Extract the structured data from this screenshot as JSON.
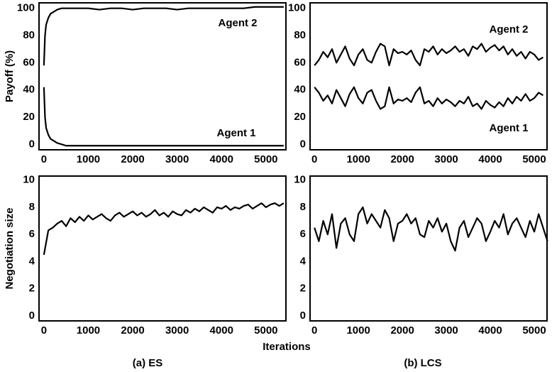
{
  "xlabel": "Iterations",
  "captions": [
    "(a) ES",
    "(b) LCS"
  ],
  "chart_data": [
    {
      "type": "line",
      "ylabel": "Payoff (%)",
      "annotations": [
        "Agent 2",
        "Agent 1"
      ],
      "xlim": [
        -110,
        5450
      ],
      "ylim": [
        -4,
        104
      ],
      "xticks": [
        0,
        1000,
        2000,
        3000,
        4000,
        5000
      ],
      "yticks": [
        0,
        20,
        40,
        60,
        80,
        100
      ],
      "x": [
        0,
        25,
        50,
        100,
        150,
        200,
        300,
        400,
        500,
        750,
        1000,
        1250,
        1500,
        1750,
        2000,
        2250,
        2500,
        2750,
        3000,
        3250,
        3500,
        3750,
        4000,
        4250,
        4500,
        4750,
        5000,
        5250,
        5400
      ],
      "series": [
        {
          "name": "Agent 2",
          "color": "#000000",
          "values": [
            58,
            80,
            88,
            93,
            96,
            97,
            99,
            100,
            100,
            100,
            100,
            99,
            100,
            100,
            99,
            100,
            100,
            100,
            99,
            100,
            100,
            100,
            100,
            100,
            100,
            101,
            101,
            101,
            101
          ]
        },
        {
          "name": "Agent 1",
          "color": "#000000",
          "values": [
            42,
            20,
            12,
            7,
            4,
            3,
            1,
            0,
            -1,
            -1,
            -1,
            -1,
            -1,
            -1,
            -1,
            -1,
            -1,
            -1,
            -1,
            -1,
            -1,
            -1,
            -1,
            -1,
            -1,
            -1,
            -1,
            -1,
            -1
          ]
        }
      ]
    },
    {
      "type": "line",
      "annotations": [
        "Agent 2",
        "Agent 1"
      ],
      "xlim": [
        -100,
        5290
      ],
      "ylim": [
        -4,
        104
      ],
      "xticks": [
        0,
        1000,
        2000,
        3000,
        4000,
        5000
      ],
      "yticks": [
        0,
        20,
        40,
        60,
        80,
        100
      ],
      "x": [
        0,
        100,
        200,
        300,
        400,
        500,
        600,
        700,
        800,
        900,
        1000,
        1100,
        1200,
        1300,
        1400,
        1500,
        1600,
        1700,
        1800,
        1900,
        2000,
        2100,
        2200,
        2300,
        2400,
        2500,
        2600,
        2700,
        2800,
        2900,
        3000,
        3100,
        3200,
        3300,
        3400,
        3500,
        3600,
        3700,
        3800,
        3900,
        4000,
        4100,
        4200,
        4300,
        4400,
        4500,
        4600,
        4700,
        4800,
        4900,
        5000,
        5100,
        5200
      ],
      "series": [
        {
          "name": "Agent 2",
          "color": "#000000",
          "values": [
            58,
            62,
            68,
            64,
            70,
            60,
            66,
            72,
            63,
            58,
            66,
            70,
            62,
            60,
            68,
            74,
            72,
            58,
            70,
            67,
            68,
            66,
            69,
            62,
            58,
            70,
            68,
            72,
            66,
            70,
            67,
            69,
            72,
            68,
            70,
            65,
            72,
            70,
            74,
            68,
            71,
            73,
            69,
            72,
            66,
            70,
            65,
            68,
            63,
            68,
            66,
            62,
            64
          ]
        },
        {
          "name": "Agent 1",
          "color": "#000000",
          "values": [
            42,
            38,
            32,
            36,
            30,
            40,
            34,
            28,
            37,
            42,
            34,
            30,
            38,
            40,
            32,
            26,
            28,
            42,
            30,
            33,
            32,
            34,
            31,
            38,
            42,
            30,
            32,
            28,
            34,
            30,
            33,
            31,
            28,
            32,
            30,
            35,
            28,
            30,
            26,
            32,
            29,
            27,
            31,
            28,
            34,
            30,
            35,
            32,
            37,
            32,
            34,
            38,
            36
          ]
        }
      ]
    },
    {
      "type": "line",
      "ylabel": "Negotiation size",
      "xlim": [
        -110,
        5450
      ],
      "ylim": [
        -0.37,
        10.3
      ],
      "xticks": [
        0,
        1000,
        2000,
        3000,
        4000,
        5000
      ],
      "yticks": [
        0,
        2,
        4,
        6,
        8,
        10
      ],
      "x": [
        0,
        100,
        200,
        300,
        400,
        500,
        600,
        700,
        800,
        900,
        1000,
        1100,
        1200,
        1300,
        1400,
        1500,
        1600,
        1700,
        1800,
        1900,
        2000,
        2100,
        2200,
        2300,
        2400,
        2500,
        2600,
        2700,
        2800,
        2900,
        3000,
        3100,
        3200,
        3300,
        3400,
        3500,
        3600,
        3700,
        3800,
        3900,
        4000,
        4100,
        4200,
        4300,
        4400,
        4500,
        4600,
        4700,
        4800,
        4900,
        5000,
        5100,
        5200,
        5300,
        5400
      ],
      "series": [
        {
          "color": "#000000",
          "values": [
            4.5,
            6.3,
            6.5,
            6.8,
            7.0,
            6.6,
            7.2,
            6.9,
            7.3,
            7.0,
            7.4,
            7.1,
            7.3,
            7.5,
            7.2,
            7.0,
            7.4,
            7.6,
            7.3,
            7.5,
            7.7,
            7.4,
            7.6,
            7.3,
            7.5,
            7.8,
            7.4,
            7.6,
            7.3,
            7.7,
            7.5,
            7.4,
            7.8,
            7.6,
            7.9,
            7.7,
            8.0,
            7.8,
            7.6,
            8.0,
            7.9,
            8.1,
            7.8,
            8.0,
            7.9,
            8.1,
            8.2,
            7.9,
            8.1,
            8.3,
            8.0,
            8.2,
            8.3,
            8.1,
            8.3
          ]
        }
      ]
    },
    {
      "type": "line",
      "xlim": [
        -100,
        5290
      ],
      "ylim": [
        -0.37,
        10.3
      ],
      "xticks": [
        0,
        1000,
        2000,
        3000,
        4000,
        5000
      ],
      "yticks": [
        0,
        2,
        4,
        6,
        8,
        10
      ],
      "x": [
        0,
        100,
        200,
        300,
        400,
        500,
        600,
        700,
        800,
        900,
        1000,
        1100,
        1200,
        1300,
        1400,
        1500,
        1600,
        1700,
        1800,
        1900,
        2000,
        2100,
        2200,
        2300,
        2400,
        2500,
        2600,
        2700,
        2800,
        2900,
        3000,
        3100,
        3200,
        3300,
        3400,
        3500,
        3600,
        3700,
        3800,
        3900,
        4000,
        4100,
        4200,
        4300,
        4400,
        4500,
        4600,
        4700,
        4800,
        4900,
        5000,
        5100,
        5200,
        5300
      ],
      "series": [
        {
          "color": "#000000",
          "values": [
            6.5,
            5.5,
            7.0,
            6.0,
            7.5,
            5.0,
            6.8,
            7.2,
            6.0,
            5.5,
            7.5,
            8.0,
            6.8,
            7.5,
            7.0,
            6.5,
            7.8,
            7.2,
            5.5,
            6.8,
            7.0,
            7.5,
            6.8,
            7.2,
            6.0,
            5.8,
            7.0,
            6.5,
            7.2,
            6.2,
            6.8,
            5.5,
            4.8,
            6.5,
            7.0,
            5.8,
            6.5,
            7.2,
            6.8,
            5.5,
            6.2,
            7.0,
            6.5,
            7.5,
            6.0,
            6.8,
            7.2,
            6.5,
            5.8,
            7.0,
            6.2,
            7.5,
            6.5,
            5.5
          ]
        }
      ]
    }
  ]
}
